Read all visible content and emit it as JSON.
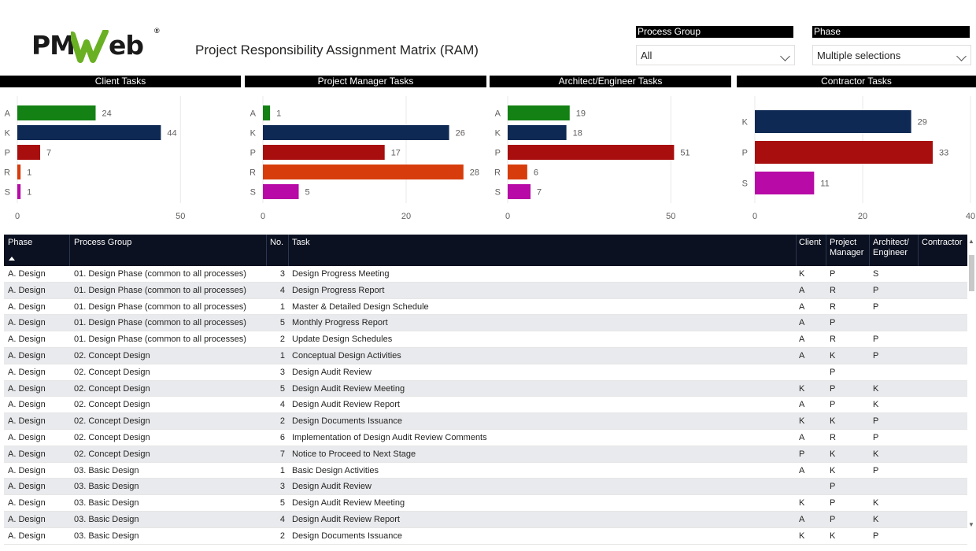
{
  "header": {
    "logo_text_a": "PM",
    "logo_text_b": "eb",
    "logo_reg": "®",
    "title": "Project Responsibility Assignment Matrix (RAM)"
  },
  "slicers": {
    "process_group": {
      "label": "Process Group",
      "value": "All"
    },
    "phase": {
      "label": "Phase",
      "value": "Multiple selections"
    }
  },
  "colors": {
    "A": "#138113",
    "K": "#0e2a54",
    "P": "#a80e0e",
    "R": "#d73c0c",
    "S": "#b70aa6",
    "header_bg": "#000000",
    "table_header_bg": "#0b1120"
  },
  "chart_data": [
    {
      "type": "bar",
      "orientation": "horizontal",
      "title": "Client Tasks",
      "categories": [
        "A",
        "K",
        "P",
        "R",
        "S"
      ],
      "values": [
        24,
        44,
        7,
        1,
        1
      ],
      "xlim": [
        0,
        55
      ],
      "xticks": [
        0,
        50
      ]
    },
    {
      "type": "bar",
      "orientation": "horizontal",
      "title": "Project Manager Tasks",
      "categories": [
        "A",
        "K",
        "P",
        "R",
        "S"
      ],
      "values": [
        1,
        26,
        17,
        28,
        5
      ],
      "xlim": [
        0,
        30
      ],
      "xticks": [
        0,
        20
      ]
    },
    {
      "type": "bar",
      "orientation": "horizontal",
      "title": "Architect/Engineer Tasks",
      "categories": [
        "A",
        "K",
        "P",
        "R",
        "S"
      ],
      "values": [
        19,
        18,
        51,
        6,
        7
      ],
      "xlim": [
        0,
        55
      ],
      "xticks": [
        0,
        50
      ]
    },
    {
      "type": "bar",
      "orientation": "horizontal",
      "title": "Contractor Tasks",
      "categories": [
        "K",
        "P",
        "S"
      ],
      "values": [
        29,
        33,
        11
      ],
      "xlim": [
        0,
        40
      ],
      "xticks": [
        0,
        20,
        40
      ]
    }
  ],
  "table": {
    "columns": [
      "Phase",
      "Process Group",
      "No.",
      "Task",
      "Client",
      "Project Manager",
      "Architect/ Engineer",
      "Contractor"
    ],
    "rows": [
      [
        "A. Design",
        "01. Design Phase (common to all processes)",
        "3",
        "Design Progress Meeting",
        "K",
        "P",
        "S",
        ""
      ],
      [
        "A. Design",
        "01. Design Phase (common to all processes)",
        "4",
        "Design Progress Report",
        "A",
        "R",
        "P",
        ""
      ],
      [
        "A. Design",
        "01. Design Phase (common to all processes)",
        "1",
        "Master & Detailed Design Schedule",
        "A",
        "R",
        "P",
        ""
      ],
      [
        "A. Design",
        "01. Design Phase (common to all processes)",
        "5",
        "Monthly Progress Report",
        "A",
        "P",
        "",
        ""
      ],
      [
        "A. Design",
        "01. Design Phase (common to all processes)",
        "2",
        "Update Design Schedules",
        "A",
        "R",
        "P",
        ""
      ],
      [
        "A. Design",
        "02. Concept Design",
        "1",
        "Conceptual Design Activities",
        "A",
        "K",
        "P",
        ""
      ],
      [
        "A. Design",
        "02. Concept Design",
        "3",
        "Design Audit Review",
        "",
        "P",
        "",
        ""
      ],
      [
        "A. Design",
        "02. Concept Design",
        "5",
        "Design Audit Review Meeting",
        "K",
        "P",
        "K",
        ""
      ],
      [
        "A. Design",
        "02. Concept Design",
        "4",
        "Design Audit Review Report",
        "A",
        "P",
        "K",
        ""
      ],
      [
        "A. Design",
        "02. Concept Design",
        "2",
        "Design Documents Issuance",
        "K",
        "K",
        "P",
        ""
      ],
      [
        "A. Design",
        "02. Concept Design",
        "6",
        "Implementation of Design Audit Review Comments",
        "A",
        "R",
        "P",
        ""
      ],
      [
        "A. Design",
        "02. Concept Design",
        "7",
        "Notice to Proceed to Next Stage",
        "P",
        "K",
        "K",
        ""
      ],
      [
        "A. Design",
        "03. Basic Design",
        "1",
        "Basic Design Activities",
        "A",
        "K",
        "P",
        ""
      ],
      [
        "A. Design",
        "03. Basic Design",
        "3",
        "Design Audit Review",
        "",
        "P",
        "",
        ""
      ],
      [
        "A. Design",
        "03. Basic Design",
        "5",
        "Design Audit Review Meeting",
        "K",
        "P",
        "K",
        ""
      ],
      [
        "A. Design",
        "03. Basic Design",
        "4",
        "Design Audit Review Report",
        "A",
        "P",
        "K",
        ""
      ],
      [
        "A. Design",
        "03. Basic Design",
        "2",
        "Design Documents Issuance",
        "K",
        "K",
        "P",
        ""
      ]
    ]
  }
}
